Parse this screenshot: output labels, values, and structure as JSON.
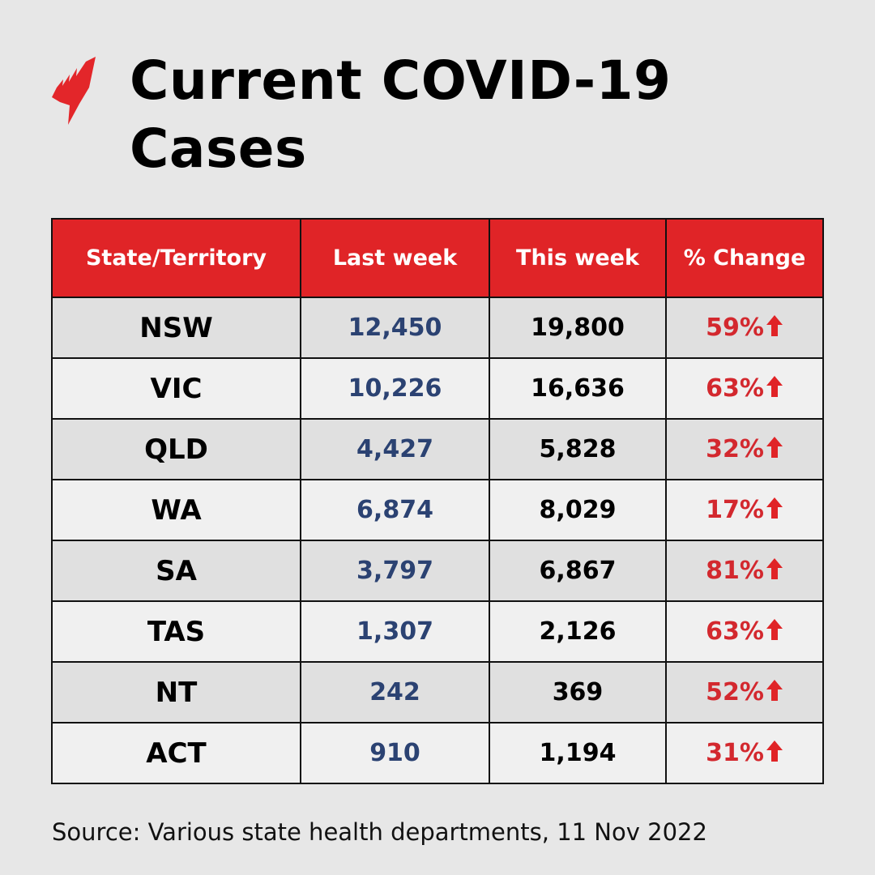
{
  "title": "Current COVID-19 Cases",
  "logo": "SBS",
  "colors": {
    "header_bg": "#e02427",
    "last_week_text": "#2b4272",
    "change_text": "#d3282e"
  },
  "chart_data": {
    "type": "table",
    "columns": [
      "State/Territory",
      "Last week",
      "This week",
      "% Change"
    ],
    "rows": [
      {
        "state": "NSW",
        "last": "12,450",
        "this": "19,800",
        "change": "59%",
        "direction": "up"
      },
      {
        "state": "VIC",
        "last": "10,226",
        "this": "16,636",
        "change": "63%",
        "direction": "up"
      },
      {
        "state": "QLD",
        "last": "4,427",
        "this": "5,828",
        "change": "32%",
        "direction": "up"
      },
      {
        "state": "WA",
        "last": "6,874",
        "this": "8,029",
        "change": "17%",
        "direction": "up"
      },
      {
        "state": "SA",
        "last": "3,797",
        "this": "6,867",
        "change": "81%",
        "direction": "up"
      },
      {
        "state": "TAS",
        "last": "1,307",
        "this": "2,126",
        "change": "63%",
        "direction": "up"
      },
      {
        "state": "NT",
        "last": "242",
        "this": "369",
        "change": "52%",
        "direction": "up"
      },
      {
        "state": "ACT",
        "last": "910",
        "this": "1,194",
        "change": "31%",
        "direction": "up"
      }
    ]
  },
  "source": "Source: Various state health departments, 11 Nov 2022"
}
